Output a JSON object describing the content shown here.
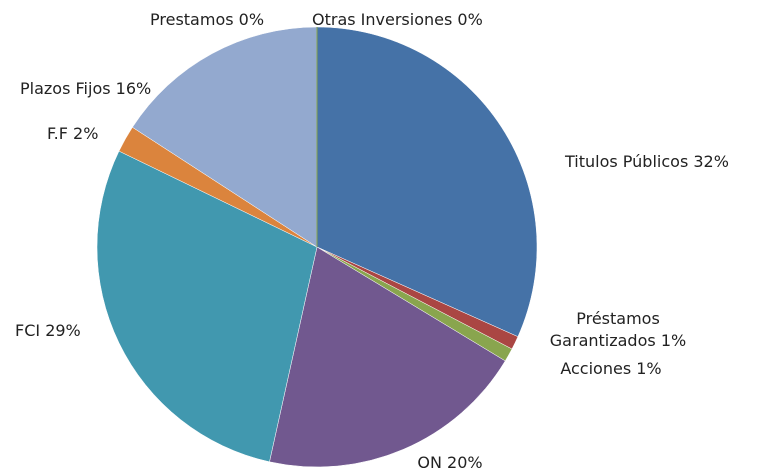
{
  "chart_data": {
    "type": "pie",
    "categories": [
      "Titulos Públicos",
      "Préstamos Garantizados",
      "Acciones",
      "ON",
      "FCI",
      "F.F",
      "Plazos Fijos",
      "Prestamos",
      "Otras Inversiones"
    ],
    "values": [
      32,
      1,
      1,
      20,
      29,
      2,
      16,
      0,
      0
    ],
    "value_labels": [
      "32%",
      "1%",
      "1%",
      "20%",
      "29%",
      "2%",
      "16%",
      "0%",
      "0%"
    ],
    "colors": [
      "#4572a7",
      "#aa4643",
      "#89a54e",
      "#71588f",
      "#4198af",
      "#db843d",
      "#93a9cf",
      "#b9cd96",
      "#89a54e"
    ]
  }
}
